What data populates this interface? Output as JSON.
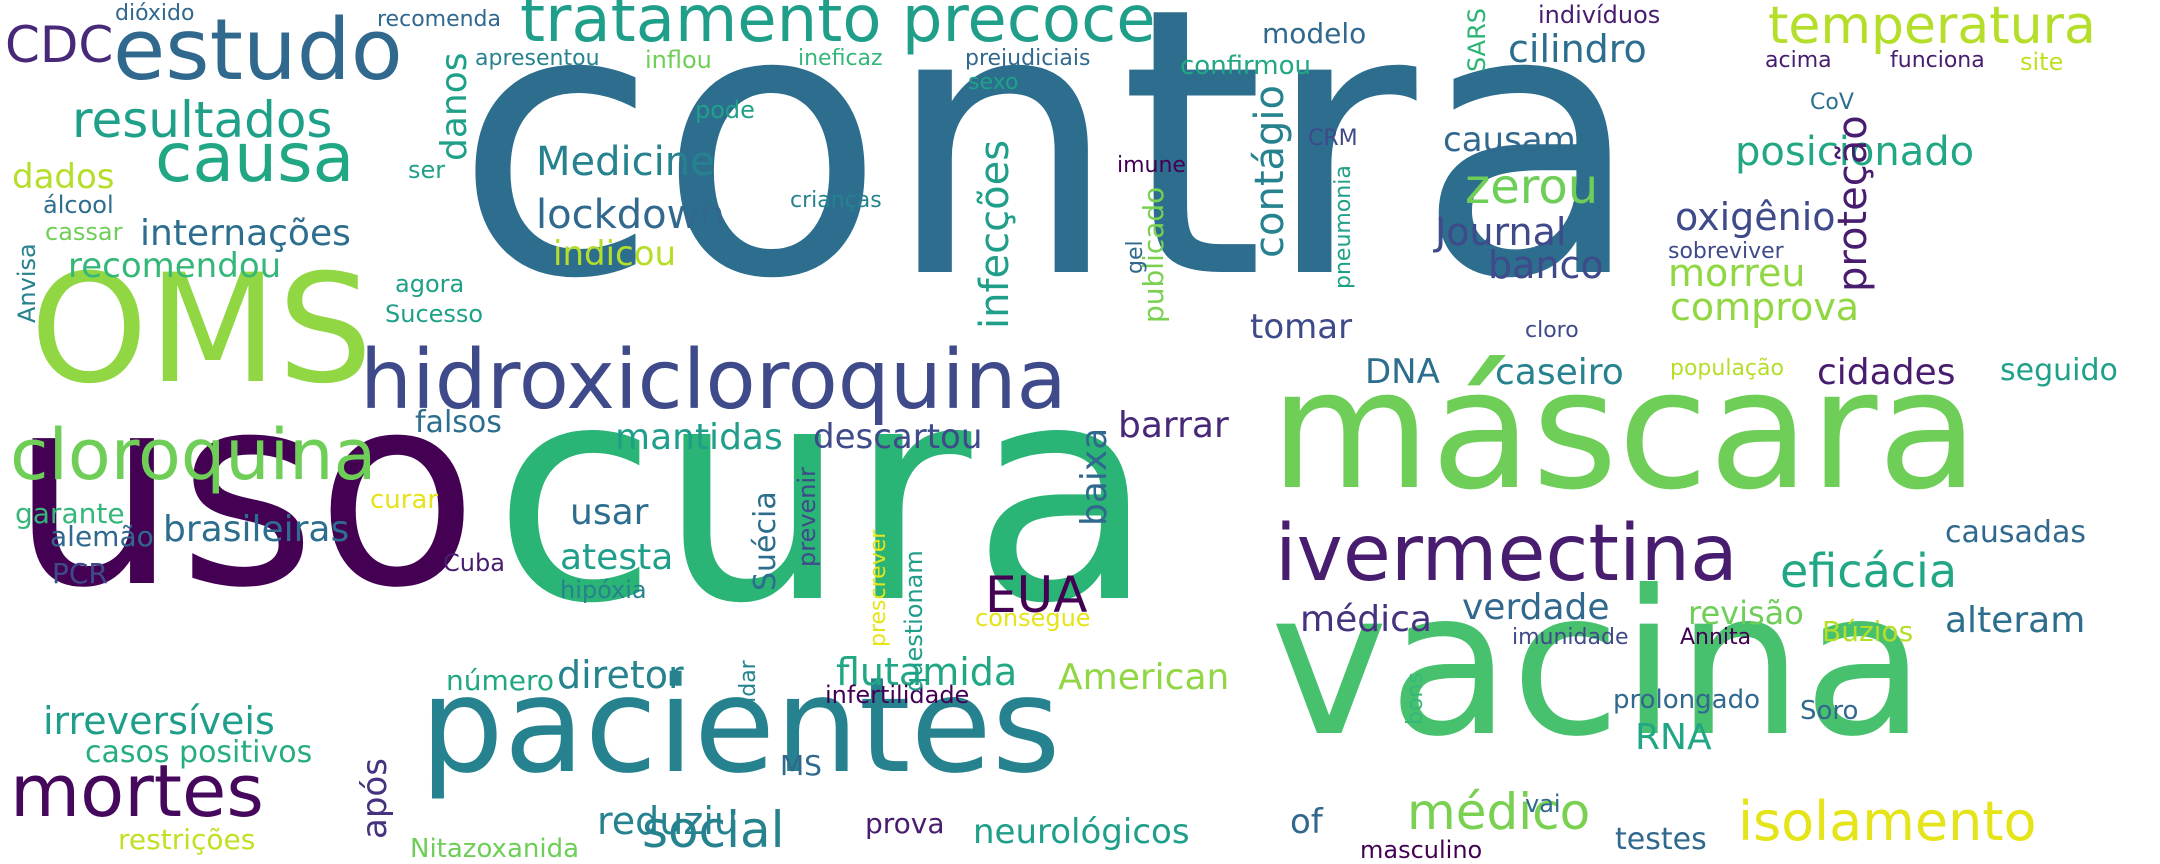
{
  "palette": {
    "p1": "#440154",
    "p2": "#482878",
    "p3": "#3e4a89",
    "p4": "#31688e",
    "p5": "#26828e",
    "p6": "#1f9e89",
    "p7": "#35b779",
    "p8": "#6ece58",
    "p9": "#90d743",
    "p10": "#b5de2b",
    "p11": "#e5e419"
  },
  "words": [
    {
      "text": "contra",
      "color": "#2d6e8e",
      "rotated": false
    },
    {
      "text": "cura",
      "color": "#2ab475",
      "rotated": false
    },
    {
      "text": "uso",
      "color": "#440154",
      "rotated": false
    },
    {
      "text": "máscara",
      "color": "#6ece58",
      "rotated": false
    },
    {
      "text": "vacina",
      "color": "#48c16e",
      "rotated": false
    },
    {
      "text": "OMS",
      "color": "#90d743",
      "rotated": false
    },
    {
      "text": "pacientes",
      "color": "#26828e",
      "rotated": false
    },
    {
      "text": "hidroxicloroquina",
      "color": "#3e4a89",
      "rotated": false
    },
    {
      "text": "ivermectina",
      "color": "#481c6e",
      "rotated": false
    },
    {
      "text": "estudo",
      "color": "#31688e",
      "rotated": false
    },
    {
      "text": "tratamento precoce",
      "color": "#1f9e89",
      "rotated": false
    },
    {
      "text": "mortes",
      "color": "#46085c",
      "rotated": false
    },
    {
      "text": "cloroquina",
      "color": "#6ece58",
      "rotated": false
    },
    {
      "text": "causa",
      "color": "#22a785",
      "rotated": false
    },
    {
      "text": "temperatura",
      "color": "#b5de2b",
      "rotated": false
    },
    {
      "text": "resultados",
      "color": "#1fa088",
      "rotated": false
    },
    {
      "text": "isolamento",
      "color": "#e5e419",
      "rotated": false
    },
    {
      "text": "eficácia",
      "color": "#22a785",
      "rotated": false
    },
    {
      "text": "social",
      "color": "#26828e",
      "rotated": false
    },
    {
      "text": "médico",
      "color": "#7ad151",
      "rotated": false
    },
    {
      "text": "Medicine",
      "color": "#26828e",
      "rotated": false
    },
    {
      "text": "lockdown",
      "color": "#31688e",
      "rotated": false
    },
    {
      "text": "zerou",
      "color": "#6ece58",
      "rotated": false
    },
    {
      "text": "CDC",
      "color": "#482878",
      "rotated": false
    },
    {
      "text": "posicionado",
      "color": "#22a785",
      "rotated": false
    },
    {
      "text": "oxigênio",
      "color": "#3e4a89",
      "rotated": false
    },
    {
      "text": "morreu",
      "color": "#90d743",
      "rotated": false
    },
    {
      "text": "comprova",
      "color": "#90d743",
      "rotated": false
    },
    {
      "text": "Journal",
      "color": "#3e4a89",
      "rotated": false
    },
    {
      "text": "banco",
      "color": "#3e4a89",
      "rotated": false
    },
    {
      "text": "cilindro",
      "color": "#2d6e8e",
      "rotated": false
    },
    {
      "text": "causam",
      "color": "#31688e",
      "rotated": false
    },
    {
      "text": "internações",
      "color": "#2d6e8e",
      "rotated": false
    },
    {
      "text": "recomendou",
      "color": "#35b779",
      "rotated": false
    },
    {
      "text": "indicou",
      "color": "#b5de2b",
      "rotated": false
    },
    {
      "text": "dados",
      "color": "#b5de2b",
      "rotated": false
    },
    {
      "text": "brasileiras",
      "color": "#2d6e8e",
      "rotated": false
    },
    {
      "text": "irreversíveis",
      "color": "#1f9e89",
      "rotated": false
    },
    {
      "text": "flutamida",
      "color": "#22a785",
      "rotated": false
    },
    {
      "text": "diretor",
      "color": "#26828e",
      "rotated": false
    },
    {
      "text": "American",
      "color": "#90d743",
      "rotated": false
    },
    {
      "text": "EUA",
      "color": "#440154",
      "rotated": false
    },
    {
      "text": "atesta",
      "color": "#1f9e89",
      "rotated": false
    },
    {
      "text": "usar",
      "color": "#2d6e8e",
      "rotated": false
    },
    {
      "text": "mantidas",
      "color": "#1f9e89",
      "rotated": false
    },
    {
      "text": "descartou",
      "color": "#3e4a89",
      "rotated": false
    },
    {
      "text": "barrar",
      "color": "#482878",
      "rotated": false
    },
    {
      "text": "tomar",
      "color": "#3e4a89",
      "rotated": false
    },
    {
      "text": "DNA",
      "color": "#2d6e8e",
      "rotated": false
    },
    {
      "text": "caseiro",
      "color": "#26828e",
      "rotated": false
    },
    {
      "text": "cidades",
      "color": "#481c6e",
      "rotated": false
    },
    {
      "text": "seguido",
      "color": "#1fa088",
      "rotated": false
    },
    {
      "text": "verdade",
      "color": "#31688e",
      "rotated": false
    },
    {
      "text": "médica",
      "color": "#46327e",
      "rotated": false
    },
    {
      "text": "alteram",
      "color": "#2d6e8e",
      "rotated": false
    },
    {
      "text": "revisão",
      "color": "#6ece58",
      "rotated": false
    },
    {
      "text": "reduziu",
      "color": "#26828e",
      "rotated": false
    },
    {
      "text": "neurológicos",
      "color": "#1f9e89",
      "rotated": false
    },
    {
      "text": "of",
      "color": "#31688e",
      "rotated": false
    },
    {
      "text": "testes",
      "color": "#31688e",
      "rotated": false
    },
    {
      "text": "RNA",
      "color": "#22a785",
      "rotated": false
    },
    {
      "text": "prolongado",
      "color": "#31688e",
      "rotated": false
    },
    {
      "text": "Soro",
      "color": "#31688e",
      "rotated": false
    },
    {
      "text": "Búzios",
      "color": "#b5de2b",
      "rotated": false
    },
    {
      "text": "causadas",
      "color": "#31688e",
      "rotated": false
    },
    {
      "text": "casos positivos",
      "color": "#26ad81",
      "rotated": false
    },
    {
      "text": "restrições",
      "color": "#c2df23",
      "rotated": false
    },
    {
      "text": "Nitazoxanida",
      "color": "#6ece58",
      "rotated": false
    },
    {
      "text": "número",
      "color": "#22a785",
      "rotated": false
    },
    {
      "text": "falsos",
      "color": "#2d6e8e",
      "rotated": false
    },
    {
      "text": "garante",
      "color": "#35b779",
      "rotated": false
    },
    {
      "text": "alemão",
      "color": "#31688e",
      "rotated": false
    },
    {
      "text": "curar",
      "color": "#e5e419",
      "rotated": false
    },
    {
      "text": "PCR",
      "color": "#3e4a89",
      "rotated": false
    },
    {
      "text": "Cuba",
      "color": "#481c6e",
      "rotated": false
    },
    {
      "text": "hipóxia",
      "color": "#26828e",
      "rotated": false
    },
    {
      "text": "consegue",
      "color": "#e5e419",
      "rotated": false
    },
    {
      "text": "infertilidade",
      "color": "#440154",
      "rotated": false
    },
    {
      "text": "prova",
      "color": "#481c6e",
      "rotated": false
    },
    {
      "text": "MS",
      "color": "#31688e",
      "rotated": false
    },
    {
      "text": "masculino",
      "color": "#440154",
      "rotated": false
    },
    {
      "text": "vai",
      "color": "#31688e",
      "rotated": false
    },
    {
      "text": "imunidade",
      "color": "#3e4a89",
      "rotated": false
    },
    {
      "text": "Annita",
      "color": "#440154",
      "rotated": false
    },
    {
      "text": "sobreviver",
      "color": "#3e4a89",
      "rotated": false
    },
    {
      "text": "cloro",
      "color": "#3e4a89",
      "rotated": false
    },
    {
      "text": "população",
      "color": "#b5de2b",
      "rotated": false
    },
    {
      "text": "CRM",
      "color": "#3e4a89",
      "rotated": false
    },
    {
      "text": "imune",
      "color": "#440154",
      "rotated": false
    },
    {
      "text": "crianças",
      "color": "#26828e",
      "rotated": false
    },
    {
      "text": "ser",
      "color": "#1fa088",
      "rotated": false
    },
    {
      "text": "álcool",
      "color": "#2d6e8e",
      "rotated": false
    },
    {
      "text": "cassar",
      "color": "#6ece58",
      "rotated": false
    },
    {
      "text": "agora",
      "color": "#1fa088",
      "rotated": false
    },
    {
      "text": "Sucesso",
      "color": "#1fa088",
      "rotated": false
    },
    {
      "text": "pode",
      "color": "#1fa088",
      "rotated": false
    },
    {
      "text": "dióxido",
      "color": "#31688e",
      "rotated": false
    },
    {
      "text": "recomenda",
      "color": "#31688e",
      "rotated": false
    },
    {
      "text": "apresentou",
      "color": "#26828e",
      "rotated": false
    },
    {
      "text": "inflou",
      "color": "#6ece58",
      "rotated": false
    },
    {
      "text": "ineficaz",
      "color": "#35b779",
      "rotated": false
    },
    {
      "text": "prejudiciais",
      "color": "#31688e",
      "rotated": false
    },
    {
      "text": "sexo",
      "color": "#1fa088",
      "rotated": false
    },
    {
      "text": "modelo",
      "color": "#31688e",
      "rotated": false
    },
    {
      "text": "confirmou",
      "color": "#22a785",
      "rotated": false
    },
    {
      "text": "indivíduos",
      "color": "#481c6e",
      "rotated": false
    },
    {
      "text": "acima",
      "color": "#481c6e",
      "rotated": false
    },
    {
      "text": "funciona",
      "color": "#481c6e",
      "rotated": false
    },
    {
      "text": "site",
      "color": "#c2df23",
      "rotated": false
    },
    {
      "text": "CoV",
      "color": "#2d6e8e",
      "rotated": false
    },
    {
      "text": "SARS",
      "color": "#2ab475",
      "rotated": true
    },
    {
      "text": "danos",
      "color": "#1fa088",
      "rotated": true
    },
    {
      "text": "contágio",
      "color": "#26828e",
      "rotated": true
    },
    {
      "text": "infecções",
      "color": "#1f9e89",
      "rotated": true
    },
    {
      "text": "publicado",
      "color": "#7ad151",
      "rotated": true
    },
    {
      "text": "gel",
      "color": "#31688e",
      "rotated": true
    },
    {
      "text": "pneumonia",
      "color": "#1fa088",
      "rotated": true
    },
    {
      "text": "proteção",
      "color": "#481c6e",
      "rotated": true
    },
    {
      "text": "Anvisa",
      "color": "#26828e",
      "rotated": true
    },
    {
      "text": "baixa",
      "color": "#31688e",
      "rotated": true
    },
    {
      "text": "Suécia",
      "color": "#2d6e8e",
      "rotated": true
    },
    {
      "text": "prevenir",
      "color": "#3e4a89",
      "rotated": true
    },
    {
      "text": "prescrever",
      "color": "#e5e419",
      "rotated": true
    },
    {
      "text": "questionam",
      "color": "#1f9e89",
      "rotated": true
    },
    {
      "text": "lidar",
      "color": "#26828e",
      "rotated": true
    },
    {
      "text": "após",
      "color": "#46327e",
      "rotated": true
    },
    {
      "text": "bons",
      "color": "#35b779",
      "rotated": true
    }
  ]
}
